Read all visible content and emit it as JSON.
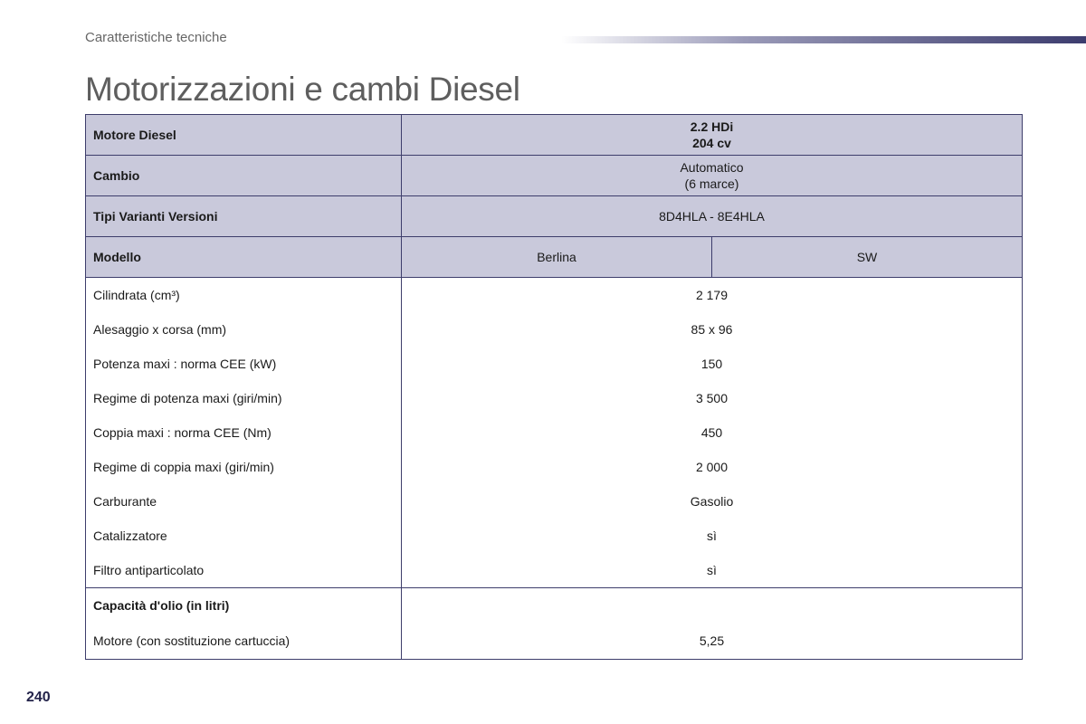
{
  "header": {
    "section": "Caratteristiche tecniche",
    "title": "Motorizzazioni e cambi Diesel"
  },
  "page_number": "240",
  "table": {
    "engine": {
      "label": "Motore Diesel",
      "line1": "2.2 HDi",
      "line2": "204 cv"
    },
    "gearbox": {
      "label": "Cambio",
      "line1": "Automatico",
      "line2": "(6 marce)"
    },
    "variants": {
      "label": "Tipi Varianti Versioni",
      "value": "8D4HLA - 8E4HLA"
    },
    "model": {
      "label": "Modello",
      "col1": "Berlina",
      "col2": "SW"
    },
    "rows": [
      {
        "label": "Cilindrata (cm³)",
        "value": "2 179"
      },
      {
        "label": "Alesaggio x corsa (mm)",
        "value": "85 x 96"
      },
      {
        "label": "Potenza maxi : norma CEE (kW)",
        "value": "150"
      },
      {
        "label": "Regime di potenza maxi (giri/min)",
        "value": "3 500"
      },
      {
        "label": "Coppia maxi : norma CEE (Nm)",
        "value": "450"
      },
      {
        "label": "Regime di coppia maxi (giri/min)",
        "value": "2 000"
      },
      {
        "label": "Carburante",
        "value": "Gasolio"
      },
      {
        "label": "Catalizzatore",
        "value": "sì"
      },
      {
        "label": "Filtro antiparticolato",
        "value": "sì"
      }
    ],
    "oil": {
      "heading": "Capacità d'olio (in litri)",
      "row": {
        "label": "Motore (con sostituzione cartuccia)",
        "value": "5,25"
      }
    }
  },
  "colors": {
    "header_fill": "#c9c9db",
    "border": "#3d3d6b",
    "title": "#5e5e5e",
    "page_number": "#23234a"
  }
}
